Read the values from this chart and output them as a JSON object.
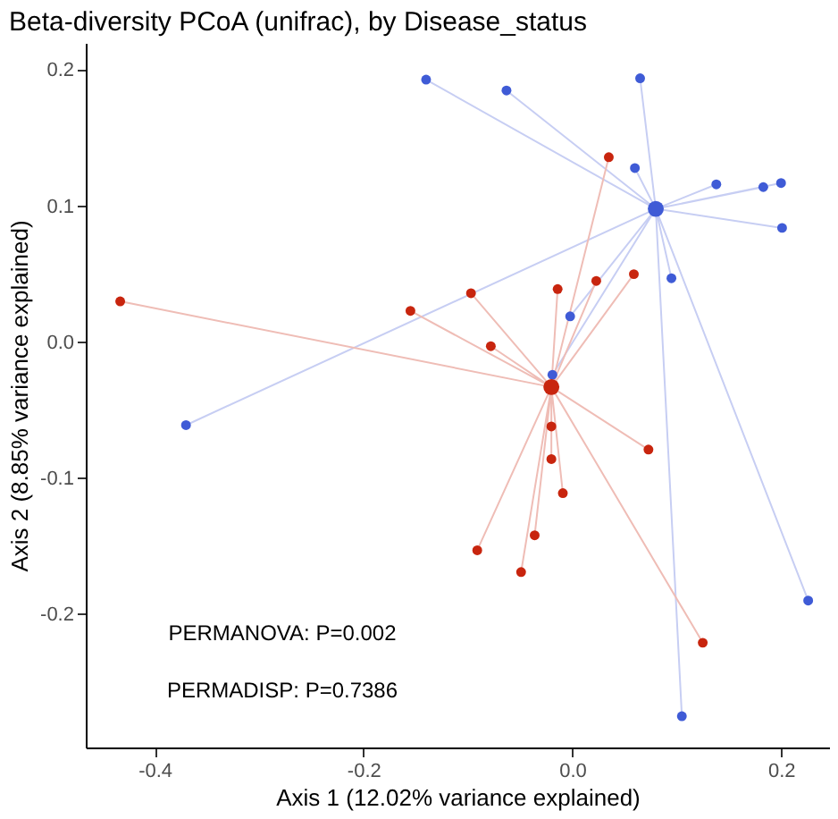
{
  "chart_data": {
    "type": "scatter",
    "title": "Beta-diversity PCoA (unifrac), by Disease_status",
    "xlabel": "Axis 1 (12.02% variance explained)",
    "ylabel": "Axis 2 (8.85% variance explained)",
    "xlim": [
      -0.466,
      0.246
    ],
    "ylim": [
      -0.298,
      0.22
    ],
    "xticks": [
      {
        "value": -0.4,
        "label": "-0.4"
      },
      {
        "value": -0.2,
        "label": "-0.2"
      },
      {
        "value": 0,
        "label": "0.0"
      },
      {
        "value": 0.2,
        "label": "0.2"
      }
    ],
    "yticks": [
      {
        "value": -0.2,
        "label": "-0.2"
      },
      {
        "value": -0.1,
        "label": "-0.1"
      },
      {
        "value": 0,
        "label": "0.0"
      },
      {
        "value": 0.1,
        "label": "0.1"
      },
      {
        "value": 0.2,
        "label": "0.2"
      }
    ],
    "grid": false,
    "marker": "circle",
    "annotations": [
      "PERMANOVA: P=0.002",
      "PERMADISP: P=0.7386"
    ],
    "series": [
      {
        "type": "line",
        "marker": "none",
        "color": "#c7cef3",
        "x": [
          -0.14,
          0.08,
          -0.063,
          0.08,
          0.065,
          0.08,
          0.06,
          0.08,
          0.138,
          0.08,
          0.183,
          0.08,
          0.2,
          0.08,
          0.201,
          0.08,
          0.095,
          0.08,
          -0.002,
          0.08,
          -0.019,
          0.08,
          -0.37,
          0.08,
          0.226,
          0.08,
          0.105,
          0.08
        ],
        "values": [
          0.193,
          0.098,
          0.185,
          0.098,
          0.194,
          0.098,
          0.128,
          0.098,
          0.116,
          0.098,
          0.114,
          0.098,
          0.117,
          0.098,
          0.084,
          0.098,
          0.047,
          0.098,
          0.019,
          0.098,
          -0.024,
          0.098,
          -0.061,
          0.098,
          -0.19,
          0.098,
          -0.275,
          0.098
        ]
      },
      {
        "type": "line",
        "marker": "none",
        "color": "#efbdb6",
        "x": [
          -0.433,
          -0.02,
          -0.155,
          -0.02,
          0.035,
          -0.02,
          -0.097,
          -0.02,
          -0.014,
          -0.02,
          0.023,
          -0.02,
          0.059,
          -0.02,
          -0.078,
          -0.02,
          -0.02,
          -0.02,
          -0.02,
          -0.02,
          -0.009,
          -0.02,
          0.073,
          -0.02,
          -0.036,
          -0.02,
          -0.091,
          -0.02,
          -0.049,
          -0.02,
          0.125,
          -0.02
        ],
        "values": [
          0.03,
          -0.033,
          0.023,
          -0.033,
          0.136,
          -0.033,
          0.036,
          -0.033,
          0.039,
          -0.033,
          0.045,
          -0.033,
          0.05,
          -0.033,
          -0.003,
          -0.033,
          -0.062,
          -0.033,
          -0.086,
          -0.033,
          -0.111,
          -0.033,
          -0.079,
          -0.033,
          -0.142,
          -0.033,
          -0.153,
          -0.033,
          -0.169,
          -0.033,
          -0.221,
          -0.033
        ]
      },
      {
        "color": "#3f5bd6",
        "x": [
          -0.14,
          -0.063,
          0.065,
          0.06,
          0.138,
          0.183,
          0.2,
          0.201,
          0.095,
          -0.002,
          -0.019,
          -0.37,
          0.226,
          0.105
        ],
        "values": [
          0.193,
          0.185,
          0.194,
          0.128,
          0.116,
          0.114,
          0.117,
          0.084,
          0.047,
          0.019,
          -0.024,
          -0.061,
          -0.19,
          -0.275
        ]
      },
      {
        "color": "#c8250e",
        "x": [
          -0.433,
          -0.155,
          0.035,
          -0.097,
          -0.014,
          0.023,
          0.059,
          -0.078,
          -0.02,
          -0.02,
          -0.009,
          0.073,
          -0.036,
          -0.091,
          -0.049,
          0.125
        ],
        "values": [
          0.03,
          0.023,
          0.136,
          0.036,
          0.039,
          0.045,
          0.05,
          -0.003,
          -0.062,
          -0.086,
          -0.111,
          -0.079,
          -0.142,
          -0.153,
          -0.169,
          -0.221
        ]
      },
      {
        "color": "#3f5bd6",
        "x": [
          0.08
        ],
        "values": [
          0.098
        ]
      },
      {
        "color": "#c8250e",
        "x": [
          -0.02
        ],
        "values": [
          -0.033
        ]
      }
    ]
  }
}
